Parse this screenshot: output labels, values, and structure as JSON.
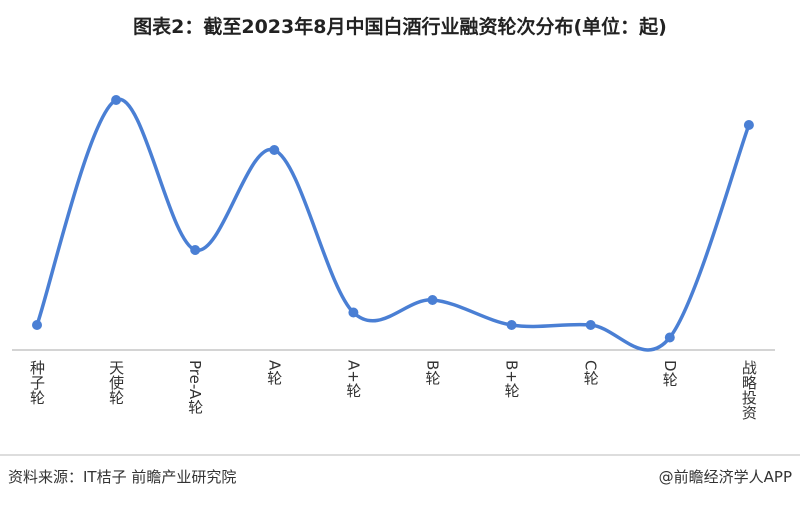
{
  "chart_data": {
    "type": "line",
    "title": "图表2：截至2023年8月中国白酒行业融资轮次分布(单位：起)",
    "categories": [
      "种子轮",
      "天使轮",
      "Pre-A轮",
      "A轮",
      "A+轮",
      "B轮",
      "B+轮",
      "C轮",
      "D轮",
      "战略投资"
    ],
    "values": [
      2,
      20,
      8,
      16,
      3,
      4,
      2,
      2,
      1,
      18
    ],
    "color": "#4a7fd4",
    "ylim": [
      0,
      22
    ],
    "source": "资料来源：IT桔子 前瞻产业研究院",
    "credit": "@前瞻经济学人APP"
  }
}
